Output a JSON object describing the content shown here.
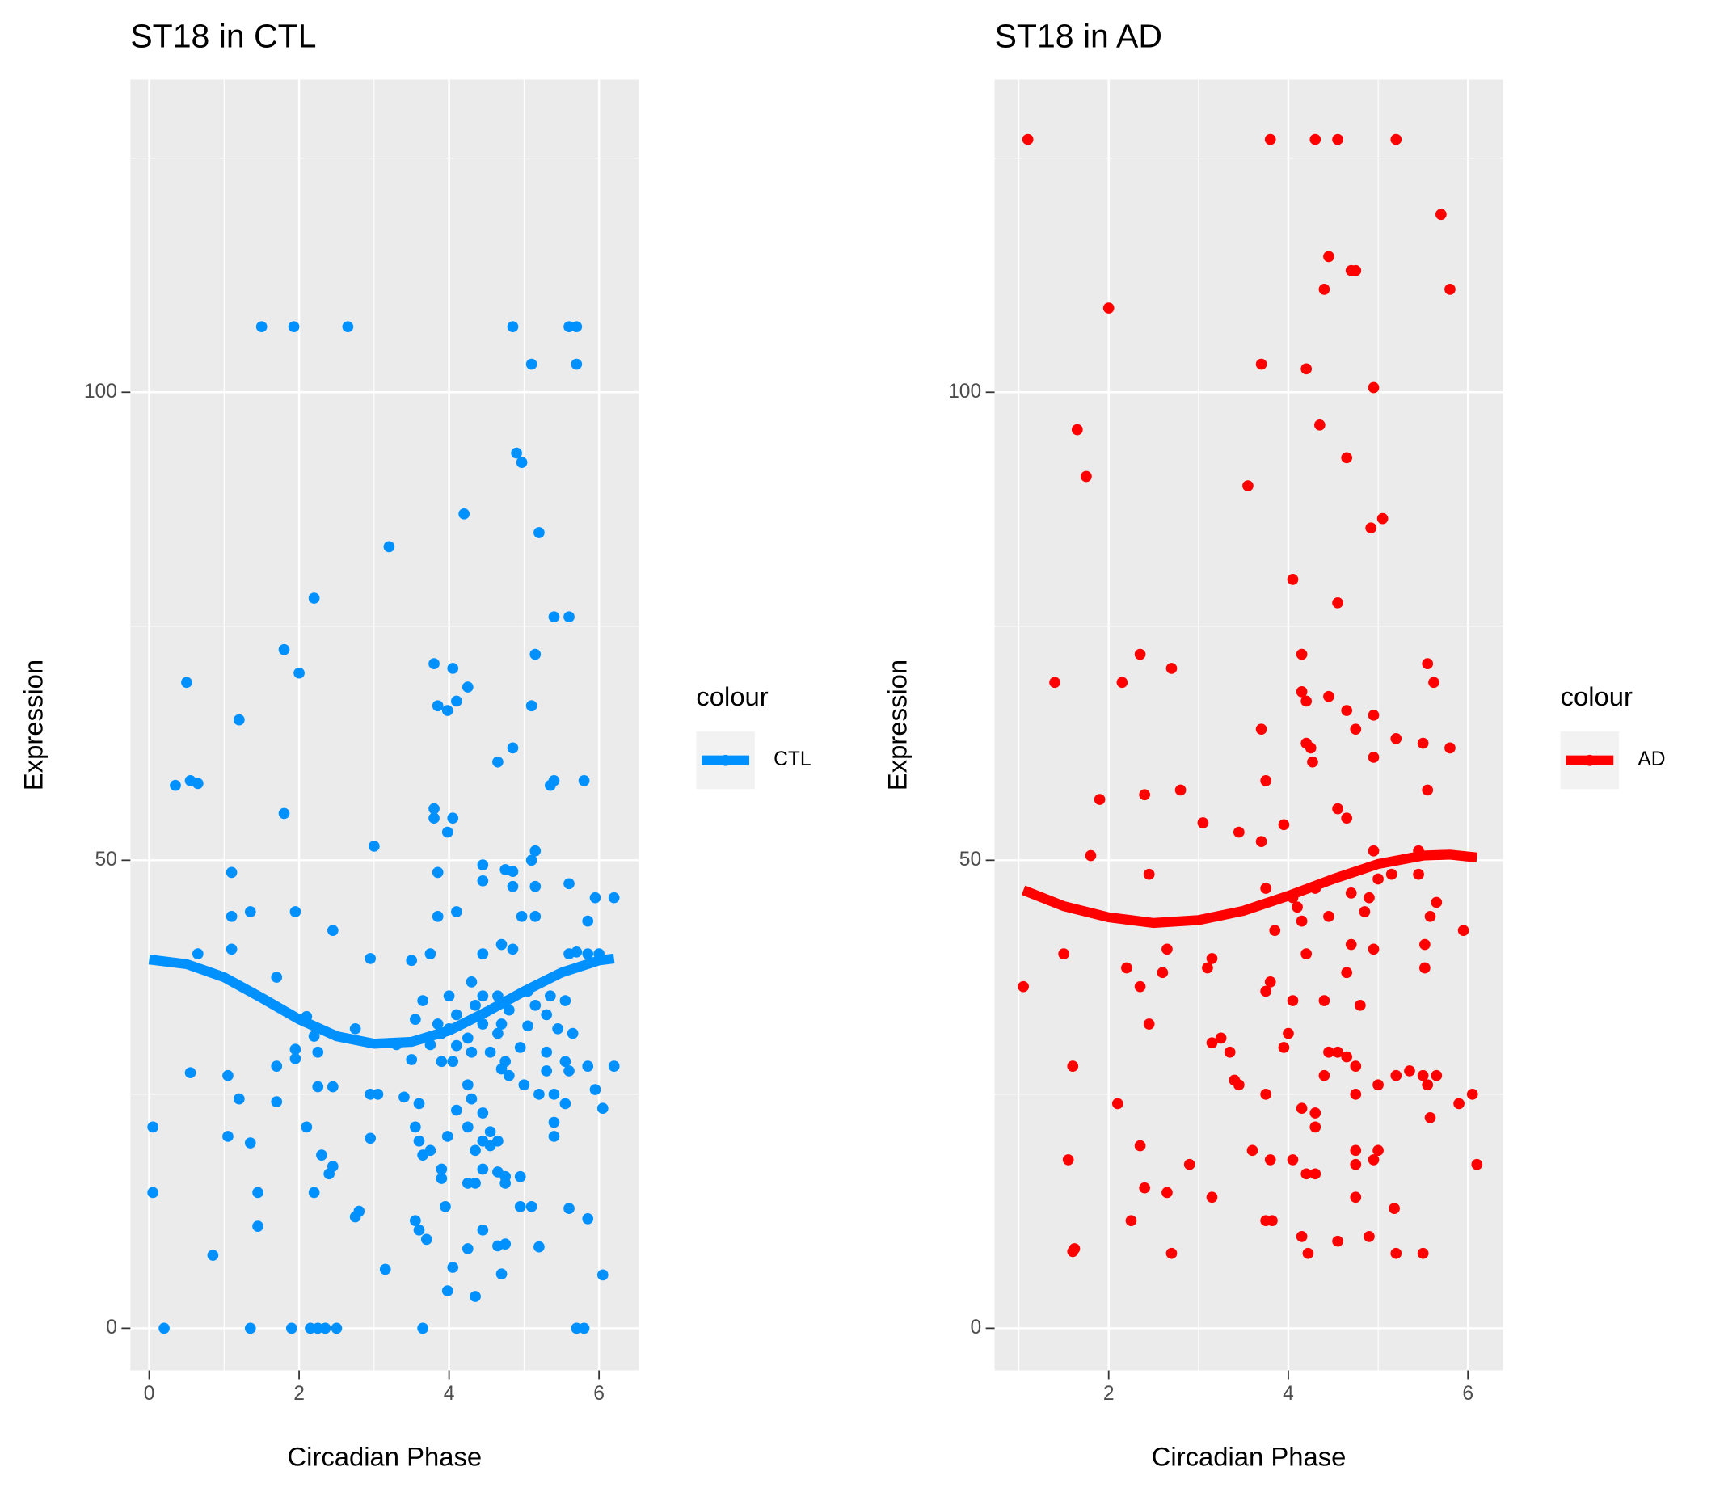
{
  "chart_data": [
    {
      "type": "scatter",
      "title": "ST18 in CTL",
      "xlabel": "Circadian Phase",
      "ylabel": "Expression",
      "legend_title": "colour",
      "xlim": [
        -0.25,
        6.53
      ],
      "ylim": [
        -4.5,
        133.4
      ],
      "xticks": [
        0,
        2,
        4,
        6
      ],
      "yticks": [
        0,
        50,
        100
      ],
      "minor_xticks": [
        1,
        3,
        5
      ],
      "minor_yticks": [
        25,
        75,
        125
      ],
      "grid": true,
      "series": [
        {
          "name": "CTL",
          "color": "#0091ff",
          "x": [
            1.5,
            1.93,
            2.65,
            4.85,
            5.6,
            5.7,
            5.1,
            5.7,
            4.9,
            4.97,
            4.2,
            5.2,
            3.2,
            2.2,
            5.4,
            5.6,
            1.8,
            0.5,
            2.0,
            3.8,
            4.05,
            5.15,
            4.25,
            3.85,
            3.98,
            4.1,
            5.1,
            1.2,
            4.85,
            4.65,
            0.35,
            0.55,
            0.65,
            5.4,
            5.35,
            5.8,
            1.8,
            3.8,
            3.8,
            4.05,
            3.98,
            3.0,
            5.15,
            5.1,
            4.45,
            4.75,
            4.85,
            3.85,
            1.1,
            4.45,
            4.85,
            5.15,
            5.6,
            5.95,
            6.2,
            5.85,
            4.1,
            1.35,
            1.95,
            1.1,
            3.85,
            4.97,
            5.15,
            2.45,
            4.7,
            4.85,
            1.1,
            0.65,
            2.95,
            3.5,
            3.75,
            4.45,
            5.6,
            5.7,
            5.85,
            6.0,
            4.3,
            4.0,
            4.45,
            4.65,
            5.05,
            5.35,
            5.55,
            1.7,
            3.65,
            3.55,
            4.1,
            4.35,
            5.15,
            5.3,
            2.1,
            4.8,
            3.85,
            4.0,
            4.45,
            4.7,
            5.05,
            5.45,
            2.75,
            3.9,
            4.25,
            4.65,
            5.65,
            2.2,
            1.95,
            3.3,
            3.75,
            4.1,
            4.55,
            4.95,
            5.3,
            1.95,
            2.25,
            3.5,
            3.9,
            4.05,
            4.3,
            4.75,
            5.55,
            1.7,
            0.55,
            1.05,
            4.7,
            4.8,
            5.3,
            5.6,
            5.85,
            6.2,
            4.25,
            5.0,
            2.25,
            2.45,
            2.95,
            3.05,
            3.4,
            1.2,
            1.7,
            4.3,
            5.2,
            5.4,
            5.95,
            6.05,
            4.45,
            5.55,
            3.6,
            4.1,
            5.4,
            0.05,
            2.1,
            3.55,
            4.25,
            1.05,
            2.95,
            3.6,
            3.98,
            4.55,
            5.4,
            1.35,
            4.45,
            4.65,
            3.75,
            4.35,
            2.3,
            3.65,
            4.55,
            2.45,
            4.45,
            3.9,
            4.65,
            4.75,
            4.95,
            2.4,
            3.9,
            4.25,
            4.35,
            4.75,
            0.05,
            1.45,
            2.2,
            3.95,
            4.95,
            5.1,
            5.6,
            2.75,
            2.8,
            5.85,
            3.55,
            1.45,
            3.6,
            3.7,
            4.45,
            4.25,
            4.65,
            4.75,
            5.2,
            0.85,
            4.05,
            3.15,
            4.7,
            6.05,
            3.98,
            4.35,
            0.2,
            1.35,
            1.9,
            2.15,
            2.25,
            2.35,
            2.5,
            3.65,
            5.7,
            5.8
          ],
          "values": [
            107,
            107,
            107,
            107,
            107,
            107,
            103,
            103,
            93.5,
            92.5,
            87,
            85,
            83.5,
            78,
            76,
            76,
            72.5,
            69,
            70,
            71,
            70.5,
            72,
            68.5,
            66.5,
            66,
            67,
            66.5,
            65,
            62,
            60.5,
            58,
            58.5,
            58.2,
            58.5,
            58,
            58.5,
            55,
            55.5,
            54.5,
            54.5,
            53,
            51.5,
            51,
            50,
            49.5,
            49,
            48.8,
            48.7,
            48.7,
            47.8,
            47.2,
            47.2,
            47.5,
            46,
            46,
            43.5,
            44.5,
            44.5,
            44.5,
            44,
            44,
            44,
            44,
            42.5,
            41,
            40.5,
            40.5,
            40,
            39.5,
            39.3,
            40,
            40,
            40,
            40.2,
            40,
            40,
            37,
            35.5,
            35.5,
            35.5,
            36,
            35.5,
            35,
            37.5,
            35,
            33,
            33.5,
            34.5,
            34.5,
            33.5,
            33.3,
            34,
            32.5,
            32,
            32.5,
            32.5,
            32.3,
            32,
            32,
            31.5,
            31,
            31.5,
            31.5,
            31.2,
            29.8,
            30.3,
            30.3,
            30.2,
            29.5,
            30,
            29.5,
            28.8,
            29.5,
            28.7,
            28.5,
            28.5,
            29.5,
            28.5,
            28.5,
            28,
            27.3,
            27,
            27.7,
            27,
            27.5,
            27.5,
            28,
            28,
            26,
            26,
            25.8,
            25.8,
            25,
            25,
            24.7,
            24.5,
            24.2,
            24.5,
            25,
            25,
            25.5,
            23.5,
            23,
            24,
            24,
            23.3,
            22,
            21.5,
            21.5,
            21.5,
            21.5,
            20.5,
            20.3,
            20,
            20.5,
            21,
            20.5,
            19.8,
            20,
            20,
            19,
            19,
            18.5,
            18.5,
            19.5,
            17.3,
            17,
            17,
            16.7,
            16.2,
            16.2,
            16.5,
            16,
            15.5,
            15.5,
            15.5,
            14.5,
            14.5,
            14.5,
            13,
            13,
            13,
            12.8,
            11.9,
            12.5,
            11.7,
            11.5,
            10.9,
            10.5,
            9.5,
            10.5,
            8.5,
            8.8,
            9,
            8.7,
            7.8,
            6.5,
            6.3,
            5.8,
            5.7,
            4,
            3.4,
            0,
            0,
            0,
            0,
            0,
            0,
            0,
            0,
            0,
            0
          ],
          "fit_x": [
            0,
            0.5,
            1,
            1.5,
            2,
            2.5,
            3,
            3.5,
            4,
            4.5,
            5,
            5.5,
            6,
            6.2
          ],
          "fit_values": [
            39.4,
            38.9,
            37.5,
            35.3,
            33.0,
            31.2,
            30.4,
            30.6,
            31.8,
            33.8,
            36.0,
            38.0,
            39.3,
            39.5
          ]
        }
      ]
    },
    {
      "type": "scatter",
      "title": "ST18 in AD",
      "xlabel": "Circadian Phase",
      "ylabel": "Expression",
      "legend_title": "colour",
      "xlim": [
        0.73,
        6.39
      ],
      "ylim": [
        -4.5,
        133.4
      ],
      "xticks": [
        2,
        4,
        6
      ],
      "yticks": [
        0,
        50,
        100
      ],
      "minor_xticks": [
        1,
        3,
        5
      ],
      "minor_yticks": [
        25,
        75,
        125
      ],
      "grid": true,
      "series": [
        {
          "name": "AD",
          "color": "#ff0000",
          "x": [
            1.1,
            3.8,
            4.3,
            4.55,
            5.2,
            5.7,
            4.45,
            4.7,
            4.75,
            4.4,
            5.8,
            2.0,
            3.7,
            4.2,
            4.95,
            1.65,
            4.35,
            4.65,
            1.75,
            3.55,
            5.05,
            4.92,
            4.05,
            4.55,
            1.4,
            2.15,
            2.35,
            2.7,
            4.15,
            4.15,
            4.2,
            4.45,
            5.55,
            5.62,
            4.65,
            4.95,
            3.7,
            4.75,
            5.2,
            5.5,
            5.8,
            4.2,
            4.25,
            4.27,
            4.95,
            3.75,
            2.4,
            2.8,
            1.9,
            5.55,
            4.55,
            4.65,
            3.05,
            3.45,
            3.95,
            3.7,
            5.45,
            4.95,
            1.8,
            2.45,
            5.0,
            5.15,
            5.45,
            3.75,
            4.3,
            4.7,
            4.05,
            4.9,
            5.65,
            4.1,
            4.85,
            4.45,
            5.58,
            4.15,
            3.85,
            5.95,
            4.7,
            5.52,
            1.5,
            2.65,
            4.2,
            4.95,
            3.15,
            3.1,
            4.65,
            5.52,
            2.2,
            2.6,
            1.05,
            2.35,
            3.8,
            3.75,
            4.05,
            4.4,
            4.8,
            2.45,
            3.25,
            3.15,
            4.0,
            3.95,
            4.45,
            4.55,
            4.65,
            3.35,
            4.75,
            1.6,
            4.4,
            5.2,
            5.35,
            5.5,
            5.65,
            3.4,
            3.45,
            5.0,
            5.55,
            3.75,
            4.75,
            6.05,
            2.1,
            5.9,
            4.15,
            4.3,
            5.58,
            4.3,
            2.35,
            3.6,
            4.75,
            5.0,
            1.55,
            2.9,
            3.8,
            4.05,
            4.75,
            4.95,
            6.1,
            4.2,
            4.3,
            2.65,
            3.15,
            4.75,
            2.4,
            5.18,
            2.25,
            3.75,
            3.82,
            4.15,
            4.9,
            4.55,
            1.6,
            1.62,
            2.7,
            4.22,
            5.2,
            5.5
          ],
          "values": [
            127,
            127,
            127,
            127,
            127,
            119,
            114.5,
            113,
            113,
            111,
            111,
            109,
            103,
            102.5,
            100.5,
            96,
            96.5,
            93,
            91,
            90,
            86.5,
            85.5,
            80,
            77.5,
            69,
            69,
            72,
            70.5,
            72,
            68,
            67,
            67.5,
            71,
            69,
            66,
            65.5,
            64,
            64,
            63,
            62.5,
            62,
            62.5,
            62,
            60.5,
            61,
            58.5,
            57,
            57.5,
            56.5,
            57.5,
            55.5,
            54.5,
            54,
            53,
            53.8,
            52,
            51,
            51,
            50.5,
            48.5,
            48,
            48.5,
            48.5,
            47,
            47,
            46.5,
            46,
            46,
            45.5,
            45,
            44.5,
            44,
            44,
            43.5,
            42.5,
            42.5,
            41,
            41,
            40,
            40.5,
            40,
            40.5,
            39.5,
            38.5,
            38,
            38.5,
            38.5,
            38,
            36.5,
            36.5,
            37,
            36,
            35,
            35,
            34.5,
            32.5,
            31,
            30.5,
            31.5,
            30,
            29.5,
            29.5,
            29,
            29.5,
            28,
            28,
            27,
            27,
            27.5,
            27,
            27,
            26.5,
            26,
            26,
            26,
            25,
            25,
            25,
            24,
            24,
            23.5,
            23,
            22.5,
            21.5,
            19.5,
            19,
            19,
            19,
            18,
            17.5,
            18,
            18,
            17.5,
            18,
            17.5,
            16.5,
            16.5,
            14.5,
            14,
            14,
            15,
            12.8,
            11.5,
            11.5,
            11.5,
            9.8,
            9.8,
            9.3,
            8.2,
            8.5,
            8,
            8,
            8,
            8
          ],
          "fit_x": [
            1.05,
            1.5,
            2,
            2.5,
            3,
            3.5,
            4,
            4.5,
            5,
            5.5,
            5.8,
            6.1
          ],
          "fit_values": [
            46.8,
            45.1,
            43.9,
            43.3,
            43.6,
            44.6,
            46.2,
            48.0,
            49.6,
            50.5,
            50.6,
            50.3
          ]
        }
      ]
    }
  ]
}
